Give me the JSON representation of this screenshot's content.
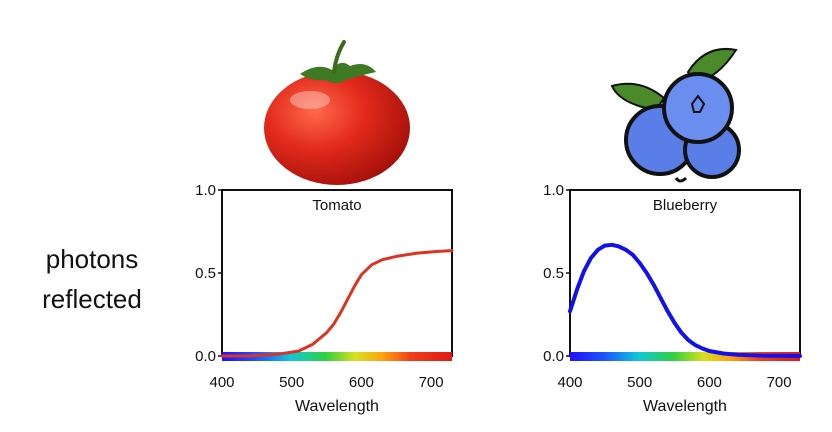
{
  "ylabel_line1": "photons",
  "ylabel_line2": "reflected",
  "chart_data": [
    {
      "type": "line",
      "title": "Tomato",
      "xlabel": "Wavelength",
      "xlim": [
        400,
        730
      ],
      "ylim": [
        0,
        1
      ],
      "x_ticks": [
        "400",
        "500",
        "600",
        "700"
      ],
      "y_ticks": [
        "0.0",
        "0.5",
        "1.0"
      ],
      "line_color": "#dd3322",
      "series": [
        {
          "x": [
            400,
            440,
            480,
            510,
            530,
            550,
            560,
            570,
            580,
            590,
            600,
            615,
            630,
            650,
            680,
            710,
            730
          ],
          "y": [
            0.0,
            0.0,
            0.01,
            0.03,
            0.07,
            0.14,
            0.19,
            0.26,
            0.34,
            0.42,
            0.49,
            0.55,
            0.58,
            0.6,
            0.62,
            0.63,
            0.635
          ]
        }
      ]
    },
    {
      "type": "line",
      "title": "Blueberry",
      "xlabel": "Wavelength",
      "xlim": [
        400,
        730
      ],
      "ylim": [
        0,
        1
      ],
      "x_ticks": [
        "400",
        "500",
        "600",
        "700"
      ],
      "y_ticks": [
        "0.0",
        "0.5",
        "1.0"
      ],
      "line_color": "#1111ee",
      "series": [
        {
          "x": [
            400,
            410,
            420,
            430,
            440,
            450,
            460,
            470,
            480,
            490,
            500,
            510,
            520,
            530,
            540,
            550,
            560,
            570,
            580,
            590,
            600,
            620,
            640,
            660,
            680,
            700,
            730
          ],
          "y": [
            0.27,
            0.4,
            0.51,
            0.59,
            0.64,
            0.665,
            0.67,
            0.66,
            0.64,
            0.61,
            0.56,
            0.5,
            0.43,
            0.35,
            0.27,
            0.2,
            0.14,
            0.095,
            0.065,
            0.045,
            0.03,
            0.015,
            0.008,
            0.004,
            0.002,
            0.001,
            0.0
          ]
        }
      ]
    }
  ]
}
